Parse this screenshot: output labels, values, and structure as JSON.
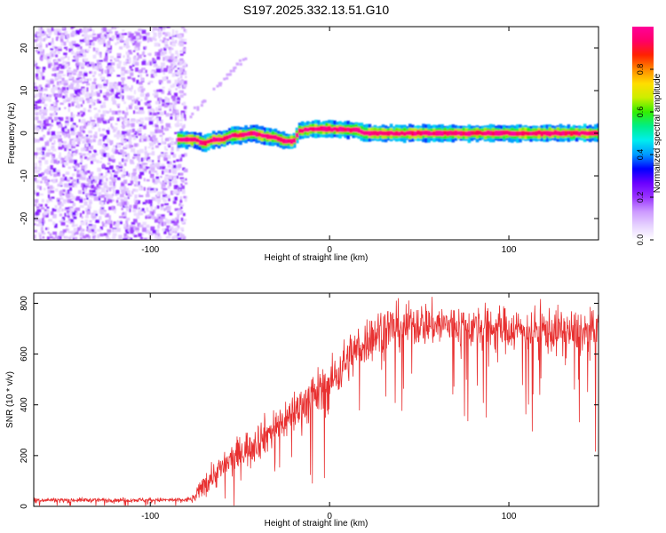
{
  "title": "S197.2025.332.13.51.G10",
  "chart_data": [
    {
      "type": "heatmap",
      "xlabel": "Height of straight line (km)",
      "ylabel": "Frequency (Hz)",
      "xlim": [
        -165,
        150
      ],
      "ylim": [
        -25,
        25
      ],
      "xticks": [
        -100,
        0,
        100
      ],
      "yticks": [
        -20,
        -10,
        0,
        10,
        20
      ],
      "colorbar": {
        "label": "Normalized spectral amplitude",
        "range": [
          0,
          1
        ],
        "ticks": [
          "0.0",
          "0.2",
          "0.4",
          "0.6",
          "0.8"
        ],
        "tick_values": [
          0,
          0.2,
          0.4,
          0.6,
          0.8
        ],
        "colors": [
          "#ffffff",
          "#e6d2ff",
          "#cc99ff",
          "#9933ff",
          "#6a00ff",
          "#0000ff",
          "#0099ff",
          "#00eeee",
          "#00ee88",
          "#33ee00",
          "#ccee00",
          "#ffdd00",
          "#ff8800",
          "#ff2200",
          "#ff0066",
          "#ff0099"
        ]
      },
      "noise_region": {
        "x_range": [
          -165,
          -80
        ],
        "freq_range": [
          -25,
          25
        ],
        "amplitude": [
          0.05,
          0.25
        ]
      },
      "signal_ridge": [
        {
          "x": -85,
          "f": -1.5
        },
        {
          "x": -78,
          "f": -1.5
        },
        {
          "x": -75,
          "f": -1.5
        },
        {
          "x": -70,
          "f": -2.5
        },
        {
          "x": -65,
          "f": -1.5
        },
        {
          "x": -60,
          "f": -1.5
        },
        {
          "x": -55,
          "f": -0.5
        },
        {
          "x": -50,
          "f": -0.5
        },
        {
          "x": -42,
          "f": 0
        },
        {
          "x": -35,
          "f": -0.8
        },
        {
          "x": -30,
          "f": -1
        },
        {
          "x": -25,
          "f": -1.8
        },
        {
          "x": -20,
          "f": -1.8
        },
        {
          "x": -17,
          "f": 0.5
        },
        {
          "x": -10,
          "f": 1
        },
        {
          "x": 0,
          "f": 1
        },
        {
          "x": 15,
          "f": 0.8
        },
        {
          "x": 20,
          "f": 0
        },
        {
          "x": 50,
          "f": 0
        },
        {
          "x": 100,
          "f": 0
        },
        {
          "x": 150,
          "f": 0
        }
      ],
      "legend": "colorbar-right"
    },
    {
      "type": "line",
      "xlabel": "Height of straight line (km)",
      "ylabel": "SNR (10 * v/v)",
      "xlim": [
        -165,
        150
      ],
      "ylim": [
        0,
        840
      ],
      "xticks": [
        -100,
        0,
        100
      ],
      "yticks": [
        0,
        200,
        400,
        600,
        800
      ],
      "color": "#e83030",
      "series": [
        {
          "name": "SNR",
          "envelope": [
            {
              "x": -165,
              "mean": 25,
              "spread": 10
            },
            {
              "x": -80,
              "mean": 25,
              "spread": 10
            },
            {
              "x": -75,
              "mean": 35,
              "spread": 20
            },
            {
              "x": -70,
              "mean": 90,
              "spread": 60
            },
            {
              "x": -60,
              "mean": 150,
              "spread": 70
            },
            {
              "x": -50,
              "mean": 210,
              "spread": 80
            },
            {
              "x": -40,
              "mean": 260,
              "spread": 90
            },
            {
              "x": -30,
              "mean": 310,
              "spread": 90
            },
            {
              "x": -20,
              "mean": 370,
              "spread": 100
            },
            {
              "x": -10,
              "mean": 430,
              "spread": 110
            },
            {
              "x": 0,
              "mean": 480,
              "spread": 110
            },
            {
              "x": 10,
              "mean": 580,
              "spread": 110
            },
            {
              "x": 20,
              "mean": 650,
              "spread": 110
            },
            {
              "x": 30,
              "mean": 700,
              "spread": 110
            },
            {
              "x": 50,
              "mean": 720,
              "spread": 100
            },
            {
              "x": 100,
              "mean": 700,
              "spread": 100
            },
            {
              "x": 150,
              "mean": 680,
              "spread": 110
            }
          ]
        }
      ]
    }
  ]
}
